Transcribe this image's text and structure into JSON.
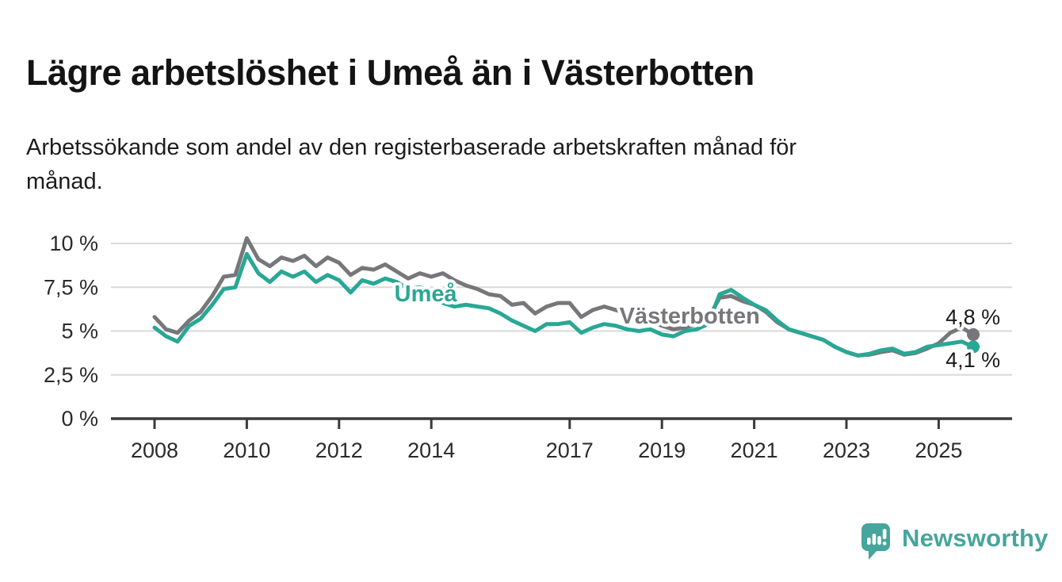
{
  "header": {
    "title": "Lägre arbetslöshet i Umeå än i Västerbotten",
    "subtitle": "Arbetssökande som andel av den registerbaserade arbetskraften månad för\nmånad."
  },
  "branding": {
    "name": "Newsworthy",
    "color": "#46a59c"
  },
  "chart_data": {
    "type": "line",
    "unit": "%",
    "grid": true,
    "decimal_separator": ",",
    "xlim": [
      2007.9,
      2026.0
    ],
    "ylim": [
      0,
      10.8
    ],
    "x_tick_years": [
      2008,
      2010,
      2012,
      2014,
      2017,
      2019,
      2021,
      2023,
      2025
    ],
    "x_tick_labels": [
      "2008",
      "2010",
      "2012",
      "2014",
      "2017",
      "2019",
      "2021",
      "2023",
      "2025"
    ],
    "y_tick_values": [
      10,
      7.5,
      5,
      2.5,
      0
    ],
    "y_tick_labels": [
      "10 %",
      "7,5 %",
      "5 %",
      "2,5 %",
      "0 %"
    ],
    "colors": {
      "axis": "#3a3a3a",
      "grid": "#d9d9d9",
      "tick_text": "#2b2b2b",
      "end_label_text": "#1a1a1a"
    },
    "x": [
      2008,
      2008.25,
      2008.5,
      2008.75,
      2009,
      2009.25,
      2009.5,
      2009.75,
      2010,
      2010.25,
      2010.5,
      2010.75,
      2011,
      2011.25,
      2011.5,
      2011.75,
      2012,
      2012.25,
      2012.5,
      2012.75,
      2013,
      2013.25,
      2013.5,
      2013.75,
      2014,
      2014.25,
      2014.5,
      2014.75,
      2015,
      2015.25,
      2015.5,
      2015.75,
      2016,
      2016.25,
      2016.5,
      2016.75,
      2017,
      2017.25,
      2017.5,
      2017.75,
      2018,
      2018.25,
      2018.5,
      2018.75,
      2019,
      2019.25,
      2019.5,
      2019.75,
      2020,
      2020.25,
      2020.5,
      2020.75,
      2021,
      2021.25,
      2021.5,
      2021.75,
      2022,
      2022.25,
      2022.5,
      2022.75,
      2023,
      2023.25,
      2023.5,
      2023.75,
      2024,
      2024.25,
      2024.5,
      2024.75,
      2025,
      2025.25,
      2025.5,
      2025.75
    ],
    "series": [
      {
        "name": "Västerbotten",
        "color": "#77777b",
        "end_label": "4,8 %",
        "latest_value": 4.8,
        "label_anchor": {
          "x": 2018.08,
          "y": 5.42
        },
        "end_label_anchor": {
          "x": 2025.15,
          "y": 5.38
        },
        "values": [
          5.8,
          5.1,
          4.9,
          5.6,
          6.1,
          7.0,
          8.1,
          8.2,
          10.3,
          9.1,
          8.7,
          9.2,
          9.0,
          9.3,
          8.7,
          9.2,
          8.9,
          8.2,
          8.6,
          8.5,
          8.8,
          8.4,
          8.0,
          8.3,
          8.1,
          8.3,
          7.9,
          7.6,
          7.4,
          7.1,
          7.0,
          6.5,
          6.6,
          6.0,
          6.4,
          6.6,
          6.6,
          5.8,
          6.2,
          6.4,
          6.2,
          6.0,
          5.8,
          5.6,
          5.3,
          5.1,
          5.2,
          5.4,
          5.7,
          6.9,
          7.0,
          6.7,
          6.5,
          6.1,
          5.5,
          5.1,
          4.9,
          4.7,
          4.5,
          4.1,
          3.8,
          3.6,
          3.65,
          3.8,
          3.9,
          3.65,
          3.75,
          4.0,
          4.3,
          4.9,
          5.2,
          4.8
        ]
      },
      {
        "name": "Umeå",
        "color": "#29a795",
        "end_label": "4,1 %",
        "latest_value": 4.1,
        "label_anchor": {
          "x": 2013.2,
          "y": 6.7
        },
        "end_label_anchor": {
          "x": 2025.15,
          "y": 2.95
        },
        "values": [
          5.2,
          4.7,
          4.4,
          5.3,
          5.7,
          6.5,
          7.4,
          7.5,
          9.4,
          8.3,
          7.8,
          8.4,
          8.1,
          8.4,
          7.8,
          8.2,
          7.9,
          7.2,
          7.9,
          7.7,
          8.0,
          7.8,
          7.4,
          7.5,
          7.2,
          6.6,
          6.4,
          6.5,
          6.4,
          6.3,
          6.0,
          5.6,
          5.3,
          5.0,
          5.4,
          5.4,
          5.5,
          4.9,
          5.2,
          5.4,
          5.3,
          5.1,
          5.0,
          5.1,
          4.8,
          4.7,
          5.0,
          5.1,
          5.4,
          7.1,
          7.35,
          6.9,
          6.5,
          6.2,
          5.6,
          5.1,
          4.9,
          4.7,
          4.5,
          4.1,
          3.8,
          3.6,
          3.7,
          3.9,
          4.0,
          3.7,
          3.8,
          4.1,
          4.2,
          4.3,
          4.4,
          4.1
        ]
      }
    ]
  }
}
